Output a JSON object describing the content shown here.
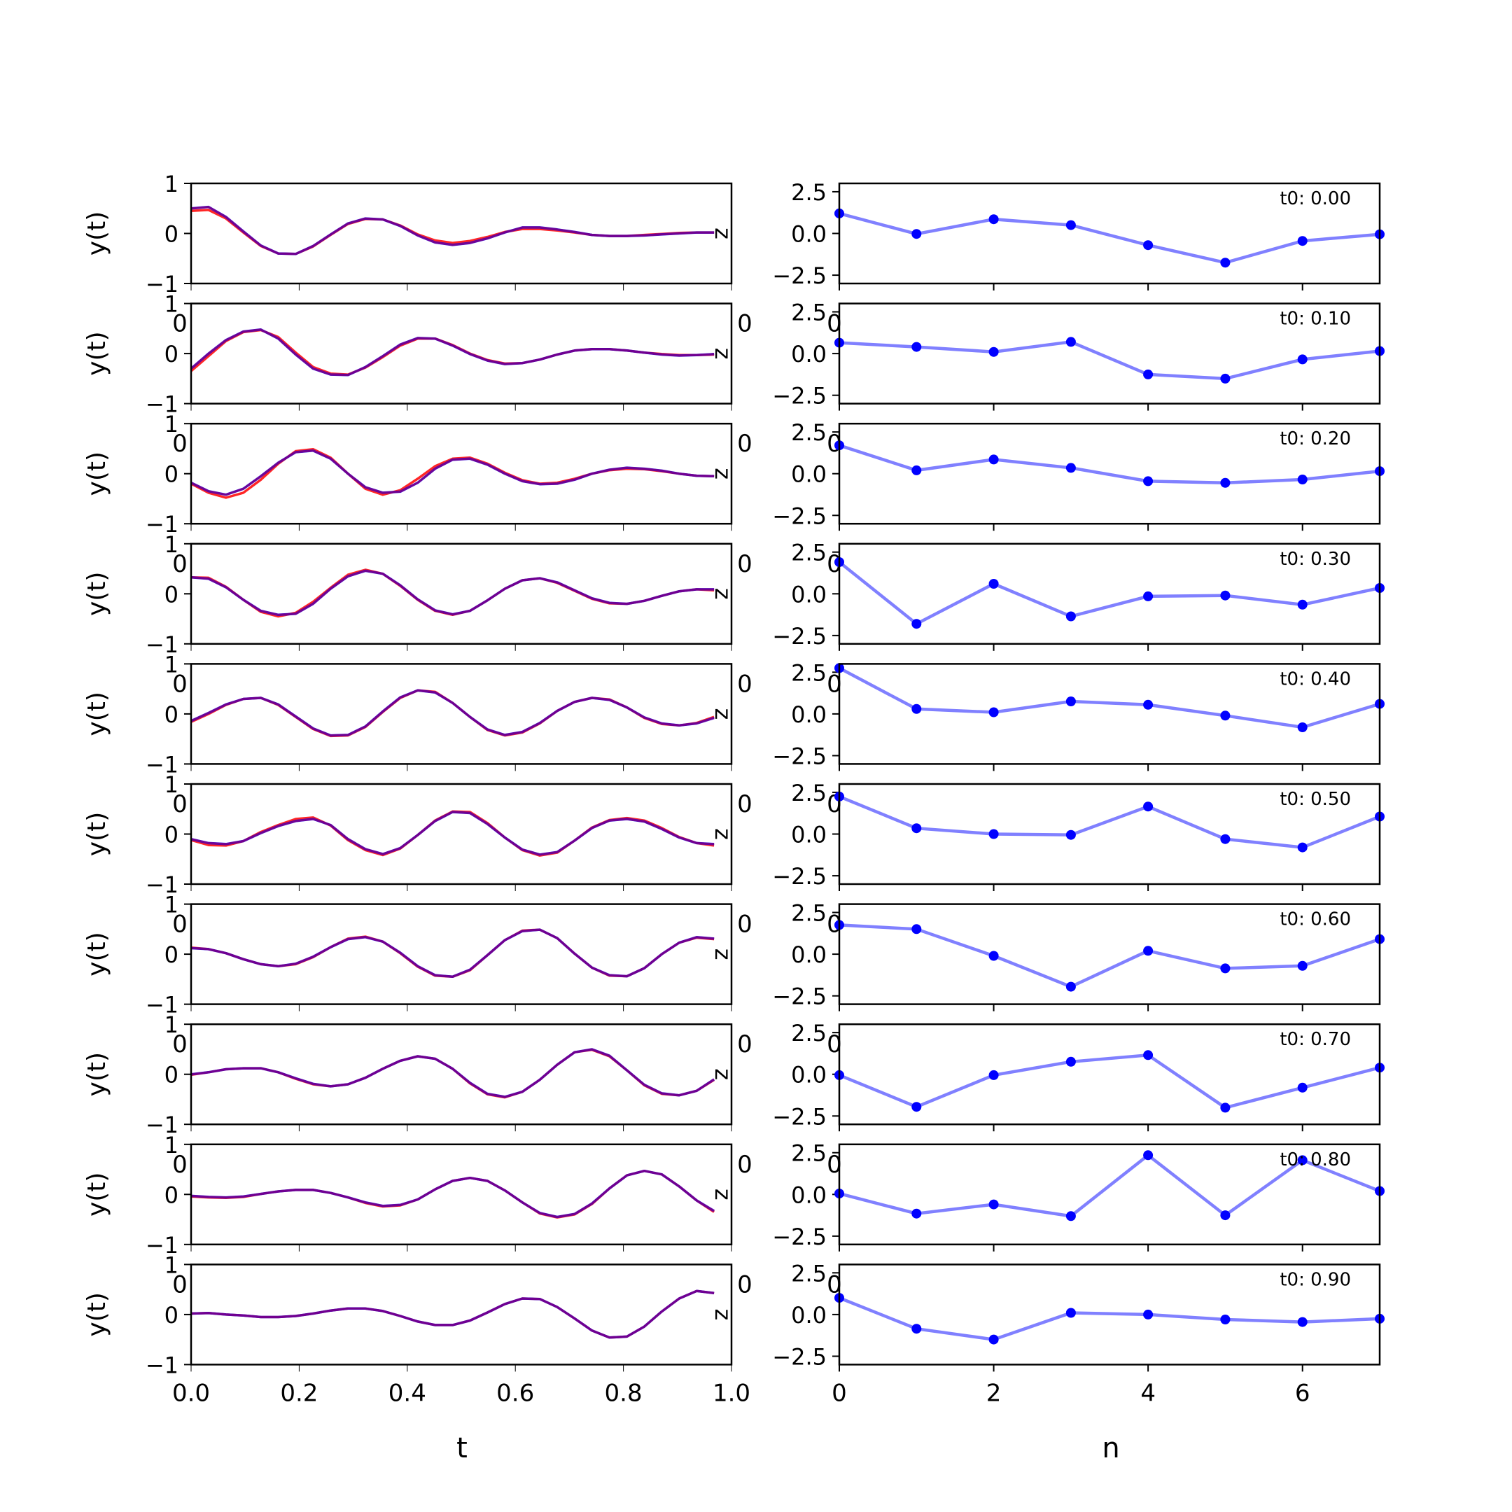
{
  "chart_data": {
    "type": "line",
    "left_column": {
      "xlabel": "t",
      "ylabel": "y(t)",
      "xlim": [
        0,
        1
      ],
      "ylim": [
        -1,
        1
      ],
      "x_ticks": [
        "0.0",
        "0.2",
        "0.4",
        "0.6",
        "0.8",
        "1.0"
      ],
      "y_ticks": [
        "−1",
        "0",
        "1"
      ],
      "side_label": "z",
      "overlap_label": "0",
      "series_colors": {
        "red": "#ff0000",
        "blue": "#0000ff",
        "overlap": "#800080"
      },
      "t": [
        0,
        0.0323,
        0.0645,
        0.0968,
        0.129,
        0.1613,
        0.1935,
        0.2258,
        0.2581,
        0.2903,
        0.3226,
        0.3548,
        0.3871,
        0.4194,
        0.4516,
        0.4839,
        0.5161,
        0.5484,
        0.5806,
        0.6129,
        0.6452,
        0.6774,
        0.7097,
        0.7419,
        0.7742,
        0.8065,
        0.8387,
        0.871,
        0.9032,
        0.9355,
        0.9677
      ],
      "panels": [
        {
          "red": [
            0.45,
            0.47,
            0.3,
            0.02,
            -0.25,
            -0.4,
            -0.41,
            -0.26,
            -0.03,
            0.19,
            0.29,
            0.28,
            0.16,
            -0.02,
            -0.14,
            -0.19,
            -0.15,
            -0.07,
            0.03,
            0.09,
            0.09,
            0.06,
            0.02,
            -0.03,
            -0.05,
            -0.05,
            -0.03,
            -0.01,
            0.01,
            0.02,
            0.02
          ],
          "blue": [
            0.5,
            0.53,
            0.33,
            0.04,
            -0.24,
            -0.4,
            -0.41,
            -0.25,
            -0.02,
            0.2,
            0.3,
            0.28,
            0.15,
            -0.04,
            -0.18,
            -0.23,
            -0.19,
            -0.1,
            0.02,
            0.12,
            0.12,
            0.08,
            0.03,
            -0.03,
            -0.05,
            -0.05,
            -0.04,
            -0.02,
            0.0,
            0.02,
            0.02
          ]
        },
        {
          "red": [
            -0.35,
            -0.05,
            0.25,
            0.43,
            0.47,
            0.33,
            0.02,
            -0.27,
            -0.4,
            -0.42,
            -0.28,
            -0.07,
            0.16,
            0.3,
            0.3,
            0.17,
            0.0,
            -0.13,
            -0.2,
            -0.19,
            -0.12,
            -0.02,
            0.06,
            0.09,
            0.09,
            0.06,
            0.02,
            -0.01,
            -0.03,
            -0.03,
            -0.02
          ],
          "blue": [
            -0.3,
            0.0,
            0.27,
            0.44,
            0.48,
            0.3,
            -0.02,
            -0.3,
            -0.42,
            -0.43,
            -0.27,
            -0.05,
            0.18,
            0.31,
            0.3,
            0.16,
            -0.01,
            -0.14,
            -0.21,
            -0.19,
            -0.12,
            -0.02,
            0.06,
            0.09,
            0.09,
            0.06,
            0.02,
            -0.02,
            -0.04,
            -0.03,
            -0.01
          ]
        },
        {
          "red": [
            -0.2,
            -0.38,
            -0.48,
            -0.38,
            -0.12,
            0.2,
            0.45,
            0.49,
            0.32,
            0.0,
            -0.3,
            -0.42,
            -0.33,
            -0.1,
            0.15,
            0.3,
            0.32,
            0.2,
            0.02,
            -0.13,
            -0.2,
            -0.18,
            -0.1,
            0.0,
            0.07,
            0.1,
            0.09,
            0.05,
            0.0,
            -0.04,
            -0.05
          ],
          "blue": [
            -0.18,
            -0.35,
            -0.42,
            -0.3,
            -0.05,
            0.22,
            0.43,
            0.46,
            0.3,
            0.0,
            -0.27,
            -0.38,
            -0.36,
            -0.18,
            0.1,
            0.28,
            0.3,
            0.18,
            0.0,
            -0.15,
            -0.21,
            -0.2,
            -0.12,
            0.0,
            0.08,
            0.12,
            0.1,
            0.06,
            0.0,
            -0.04,
            -0.05
          ]
        },
        {
          "red": [
            0.33,
            0.32,
            0.14,
            -0.12,
            -0.36,
            -0.45,
            -0.38,
            -0.16,
            0.12,
            0.38,
            0.48,
            0.4,
            0.16,
            -0.12,
            -0.34,
            -0.42,
            -0.34,
            -0.13,
            0.1,
            0.27,
            0.31,
            0.22,
            0.06,
            -0.1,
            -0.19,
            -0.2,
            -0.14,
            -0.04,
            0.05,
            0.09,
            0.07
          ],
          "blue": [
            0.33,
            0.3,
            0.13,
            -0.12,
            -0.34,
            -0.42,
            -0.4,
            -0.2,
            0.1,
            0.35,
            0.46,
            0.4,
            0.17,
            -0.11,
            -0.33,
            -0.41,
            -0.34,
            -0.13,
            0.1,
            0.27,
            0.31,
            0.23,
            0.07,
            -0.09,
            -0.18,
            -0.2,
            -0.14,
            -0.04,
            0.05,
            0.09,
            0.09
          ]
        },
        {
          "red": [
            -0.16,
            0.0,
            0.18,
            0.3,
            0.32,
            0.18,
            -0.06,
            -0.3,
            -0.44,
            -0.43,
            -0.26,
            0.04,
            0.32,
            0.47,
            0.44,
            0.22,
            -0.06,
            -0.32,
            -0.43,
            -0.37,
            -0.19,
            0.06,
            0.24,
            0.32,
            0.29,
            0.13,
            -0.08,
            -0.2,
            -0.23,
            -0.18,
            -0.06
          ],
          "blue": [
            -0.14,
            0.02,
            0.19,
            0.3,
            0.32,
            0.19,
            -0.05,
            -0.29,
            -0.43,
            -0.42,
            -0.25,
            0.05,
            0.33,
            0.47,
            0.43,
            0.22,
            -0.06,
            -0.31,
            -0.42,
            -0.36,
            -0.18,
            0.06,
            0.24,
            0.32,
            0.28,
            0.13,
            -0.07,
            -0.19,
            -0.23,
            -0.19,
            -0.08
          ]
        },
        {
          "red": [
            -0.12,
            -0.22,
            -0.23,
            -0.14,
            0.04,
            0.18,
            0.3,
            0.33,
            0.17,
            -0.12,
            -0.32,
            -0.42,
            -0.29,
            -0.02,
            0.27,
            0.45,
            0.44,
            0.22,
            -0.07,
            -0.32,
            -0.43,
            -0.37,
            -0.13,
            0.13,
            0.28,
            0.32,
            0.27,
            0.12,
            -0.06,
            -0.18,
            -0.23
          ],
          "blue": [
            -0.1,
            -0.18,
            -0.2,
            -0.14,
            0.02,
            0.16,
            0.26,
            0.3,
            0.18,
            -0.1,
            -0.3,
            -0.4,
            -0.28,
            -0.02,
            0.26,
            0.44,
            0.42,
            0.2,
            -0.07,
            -0.31,
            -0.41,
            -0.36,
            -0.13,
            0.12,
            0.27,
            0.3,
            0.25,
            0.1,
            -0.07,
            -0.18,
            -0.2
          ]
        },
        {
          "red": [
            0.13,
            0.1,
            0.02,
            -0.1,
            -0.2,
            -0.24,
            -0.2,
            -0.06,
            0.14,
            0.31,
            0.35,
            0.25,
            0.02,
            -0.25,
            -0.43,
            -0.45,
            -0.32,
            -0.02,
            0.28,
            0.47,
            0.49,
            0.32,
            0.01,
            -0.27,
            -0.43,
            -0.44,
            -0.28,
            0.0,
            0.23,
            0.33,
            0.3
          ],
          "blue": [
            0.12,
            0.1,
            0.02,
            -0.1,
            -0.2,
            -0.24,
            -0.19,
            -0.05,
            0.14,
            0.3,
            0.34,
            0.25,
            0.03,
            -0.24,
            -0.42,
            -0.45,
            -0.31,
            -0.02,
            0.28,
            0.46,
            0.49,
            0.32,
            0.01,
            -0.27,
            -0.42,
            -0.44,
            -0.28,
            0.0,
            0.23,
            0.34,
            0.31
          ]
        },
        {
          "red": [
            -0.01,
            0.04,
            0.1,
            0.12,
            0.12,
            0.04,
            -0.09,
            -0.2,
            -0.24,
            -0.2,
            -0.07,
            0.11,
            0.27,
            0.36,
            0.31,
            0.11,
            -0.18,
            -0.4,
            -0.46,
            -0.35,
            -0.11,
            0.19,
            0.44,
            0.49,
            0.36,
            0.08,
            -0.22,
            -0.39,
            -0.42,
            -0.33,
            -0.11
          ],
          "blue": [
            0.0,
            0.04,
            0.1,
            0.12,
            0.12,
            0.04,
            -0.08,
            -0.19,
            -0.24,
            -0.2,
            -0.07,
            0.11,
            0.27,
            0.36,
            0.31,
            0.11,
            -0.17,
            -0.39,
            -0.45,
            -0.35,
            -0.11,
            0.19,
            0.44,
            0.5,
            0.37,
            0.08,
            -0.21,
            -0.38,
            -0.42,
            -0.33,
            -0.1
          ]
        },
        {
          "red": [
            -0.04,
            -0.06,
            -0.07,
            -0.05,
            0.01,
            0.06,
            0.09,
            0.09,
            0.03,
            -0.06,
            -0.17,
            -0.24,
            -0.22,
            -0.1,
            0.1,
            0.27,
            0.33,
            0.27,
            0.08,
            -0.16,
            -0.38,
            -0.46,
            -0.4,
            -0.19,
            0.12,
            0.38,
            0.47,
            0.4,
            0.16,
            -0.12,
            -0.35
          ],
          "blue": [
            -0.03,
            -0.05,
            -0.06,
            -0.04,
            0.01,
            0.06,
            0.09,
            0.09,
            0.03,
            -0.06,
            -0.16,
            -0.23,
            -0.21,
            -0.1,
            0.1,
            0.27,
            0.33,
            0.27,
            0.08,
            -0.16,
            -0.37,
            -0.45,
            -0.39,
            -0.18,
            0.12,
            0.38,
            0.47,
            0.4,
            0.16,
            -0.12,
            -0.33
          ]
        },
        {
          "red": [
            0.02,
            0.03,
            0.0,
            -0.02,
            -0.05,
            -0.05,
            -0.03,
            0.02,
            0.08,
            0.12,
            0.12,
            0.07,
            -0.03,
            -0.14,
            -0.21,
            -0.21,
            -0.12,
            0.04,
            0.21,
            0.32,
            0.31,
            0.15,
            -0.08,
            -0.32,
            -0.46,
            -0.44,
            -0.24,
            0.06,
            0.32,
            0.47,
            0.43
          ],
          "blue": [
            0.02,
            0.03,
            0.0,
            -0.02,
            -0.05,
            -0.05,
            -0.03,
            0.02,
            0.08,
            0.12,
            0.12,
            0.07,
            -0.03,
            -0.14,
            -0.21,
            -0.21,
            -0.12,
            0.04,
            0.21,
            0.32,
            0.31,
            0.15,
            -0.08,
            -0.32,
            -0.46,
            -0.44,
            -0.24,
            0.06,
            0.32,
            0.47,
            0.43
          ]
        }
      ]
    },
    "right_column": {
      "xlabel": "n",
      "xlim": [
        0,
        7
      ],
      "ylim": [
        -3,
        3
      ],
      "x_ticks": [
        "0",
        "2",
        "4",
        "6"
      ],
      "y_ticks": [
        "2.5",
        "0.0",
        "−2.5"
      ],
      "point_color": "#0000ff",
      "line_color": "#8080ff",
      "overlap_label": "0",
      "n": [
        0,
        1,
        2,
        3,
        4,
        5,
        6,
        7
      ],
      "panels": [
        {
          "label": "t0: 0.00",
          "values": [
            1.2,
            -0.03,
            0.85,
            0.5,
            -0.7,
            -1.75,
            -0.45,
            -0.05
          ]
        },
        {
          "label": "t0: 0.10",
          "values": [
            0.65,
            0.4,
            0.1,
            0.7,
            -1.25,
            -1.5,
            -0.35,
            0.15
          ]
        },
        {
          "label": "t0: 0.20",
          "values": [
            1.7,
            0.2,
            0.85,
            0.35,
            -0.45,
            -0.55,
            -0.35,
            0.15
          ]
        },
        {
          "label": "t0: 0.30",
          "values": [
            1.9,
            -1.8,
            0.6,
            -1.35,
            -0.15,
            -0.1,
            -0.65,
            0.35
          ]
        },
        {
          "label": "t0: 0.40",
          "values": [
            2.75,
            0.3,
            0.1,
            0.75,
            0.55,
            -0.1,
            -0.8,
            0.6
          ]
        },
        {
          "label": "t0: 0.50",
          "values": [
            2.25,
            0.35,
            0.0,
            -0.05,
            1.65,
            -0.3,
            -0.8,
            1.05
          ]
        },
        {
          "label": "t0: 0.60",
          "values": [
            1.75,
            1.5,
            -0.1,
            -1.95,
            0.2,
            -0.85,
            -0.7,
            0.9
          ]
        },
        {
          "label": "t0: 0.70",
          "values": [
            -0.05,
            -1.95,
            -0.05,
            0.75,
            1.15,
            -2.0,
            -0.8,
            0.4
          ]
        },
        {
          "label": "t0: 0.80",
          "values": [
            0.05,
            -1.15,
            -0.6,
            -1.3,
            2.35,
            -1.25,
            2.05,
            0.2
          ]
        },
        {
          "label": "t0: 0.90",
          "values": [
            1.0,
            -0.85,
            -1.5,
            0.1,
            0.0,
            -0.3,
            -0.45,
            -0.25
          ]
        }
      ]
    }
  }
}
